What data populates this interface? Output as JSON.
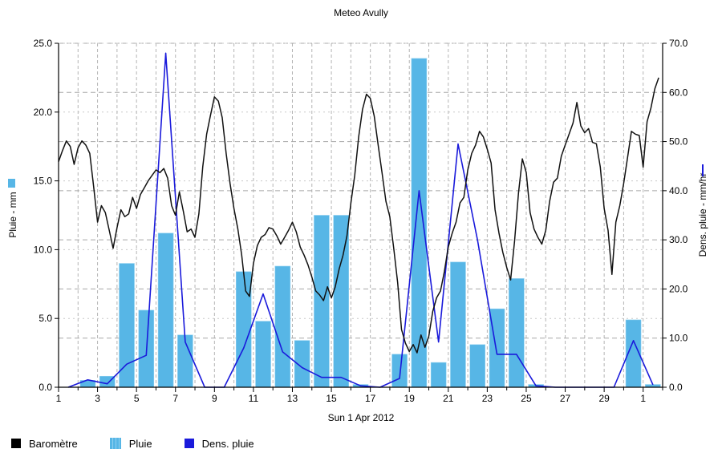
{
  "chart_data": {
    "title": "Meteo  Avully",
    "xlabel": "Sun 1 Apr 2012",
    "ylabel_left": "Pluie - mm",
    "ylabel_right": "Dens. pluie - mm/hr",
    "x_tick_labels": [
      "1",
      "3",
      "5",
      "7",
      "9",
      "11",
      "13",
      "15",
      "17",
      "19",
      "21",
      "23",
      "25",
      "27",
      "29",
      "1"
    ],
    "y_left": {
      "range": [
        0,
        25
      ],
      "ticks": [
        "0.0",
        "5.0",
        "10.0",
        "15.0",
        "20.0",
        "25.0"
      ]
    },
    "y_right": {
      "range": [
        0,
        70
      ],
      "ticks": [
        "0.0",
        "10.0",
        "20.0",
        "30.0",
        "40.0",
        "50.0",
        "60.0",
        "70.0"
      ]
    },
    "grid": true,
    "legend_position": "bottom-left",
    "series": [
      {
        "name": "Pluie",
        "type": "bar",
        "axis": "left",
        "color": "#57b6e6",
        "points": [
          [
            2.5,
            0.5
          ],
          [
            3.5,
            0.8
          ],
          [
            4.5,
            9.0
          ],
          [
            5.5,
            5.6
          ],
          [
            6.5,
            11.2
          ],
          [
            7.5,
            3.8
          ],
          [
            10.5,
            8.4
          ],
          [
            11.5,
            4.8
          ],
          [
            12.5,
            8.8
          ],
          [
            13.5,
            3.4
          ],
          [
            14.5,
            12.5
          ],
          [
            15.5,
            12.5
          ],
          [
            16.5,
            0.2
          ],
          [
            18.5,
            2.4
          ],
          [
            19.5,
            23.9
          ],
          [
            20.5,
            1.8
          ],
          [
            21.5,
            9.1
          ],
          [
            22.5,
            3.1
          ],
          [
            23.5,
            5.7
          ],
          [
            24.5,
            7.9
          ],
          [
            25.5,
            0.2
          ],
          [
            30.5,
            4.9
          ],
          [
            31.5,
            0.2
          ]
        ]
      },
      {
        "name": "Dens. pluie",
        "type": "line",
        "axis": "right",
        "color": "#1a1adb",
        "points": [
          [
            1.5,
            0
          ],
          [
            2.5,
            1.5
          ],
          [
            3.5,
            0.7
          ],
          [
            4.5,
            4.7
          ],
          [
            5.5,
            6.5
          ],
          [
            6.5,
            68
          ],
          [
            7.5,
            9.2
          ],
          [
            8.5,
            0
          ],
          [
            9.5,
            0
          ],
          [
            10.5,
            8
          ],
          [
            11.5,
            19
          ],
          [
            12.5,
            7.2
          ],
          [
            13.5,
            4
          ],
          [
            14.5,
            2
          ],
          [
            15.5,
            2
          ],
          [
            16.5,
            0.3
          ],
          [
            17.5,
            0
          ],
          [
            18.5,
            1.8
          ],
          [
            19.5,
            40
          ],
          [
            20.5,
            9.2
          ],
          [
            21.5,
            49.5
          ],
          [
            22.5,
            30
          ],
          [
            23.5,
            6.7
          ],
          [
            24.5,
            6.7
          ],
          [
            25.5,
            0.3
          ],
          [
            26.5,
            0
          ],
          [
            27.5,
            0
          ],
          [
            28.5,
            0
          ],
          [
            29.5,
            0
          ],
          [
            30.5,
            9.5
          ],
          [
            31.5,
            0.5
          ]
        ]
      },
      {
        "name": "Baromètre",
        "type": "line",
        "axis": "left",
        "color": "#111111",
        "points": [
          [
            1.0,
            16.4
          ],
          [
            1.2,
            17.2
          ],
          [
            1.4,
            17.9
          ],
          [
            1.6,
            17.5
          ],
          [
            1.8,
            16.2
          ],
          [
            2.0,
            17.4
          ],
          [
            2.2,
            17.9
          ],
          [
            2.4,
            17.6
          ],
          [
            2.6,
            17.0
          ],
          [
            2.8,
            14.6
          ],
          [
            3.0,
            12.0
          ],
          [
            3.2,
            13.2
          ],
          [
            3.4,
            12.7
          ],
          [
            3.6,
            11.4
          ],
          [
            3.8,
            10.1
          ],
          [
            4.0,
            11.6
          ],
          [
            4.2,
            12.9
          ],
          [
            4.4,
            12.4
          ],
          [
            4.6,
            12.6
          ],
          [
            4.8,
            13.8
          ],
          [
            5.0,
            13.0
          ],
          [
            5.2,
            14.0
          ],
          [
            5.4,
            14.5
          ],
          [
            5.6,
            15.0
          ],
          [
            5.8,
            15.4
          ],
          [
            6.0,
            15.8
          ],
          [
            6.2,
            15.6
          ],
          [
            6.4,
            15.9
          ],
          [
            6.6,
            15.2
          ],
          [
            6.8,
            13.2
          ],
          [
            7.0,
            12.5
          ],
          [
            7.2,
            14.2
          ],
          [
            7.4,
            12.8
          ],
          [
            7.6,
            11.3
          ],
          [
            7.8,
            11.5
          ],
          [
            8.0,
            10.9
          ],
          [
            8.2,
            12.6
          ],
          [
            8.4,
            16.0
          ],
          [
            8.6,
            18.4
          ],
          [
            8.8,
            19.8
          ],
          [
            9.0,
            21.1
          ],
          [
            9.2,
            20.8
          ],
          [
            9.4,
            19.6
          ],
          [
            9.6,
            17.0
          ],
          [
            9.8,
            14.8
          ],
          [
            10.0,
            13.0
          ],
          [
            10.2,
            11.5
          ],
          [
            10.4,
            9.6
          ],
          [
            10.6,
            7.0
          ],
          [
            10.8,
            6.6
          ],
          [
            11.0,
            9.0
          ],
          [
            11.2,
            10.3
          ],
          [
            11.4,
            10.9
          ],
          [
            11.6,
            11.1
          ],
          [
            11.8,
            11.6
          ],
          [
            12.0,
            11.5
          ],
          [
            12.2,
            11.0
          ],
          [
            12.4,
            10.4
          ],
          [
            12.6,
            10.9
          ],
          [
            12.8,
            11.4
          ],
          [
            13.0,
            12.0
          ],
          [
            13.2,
            11.3
          ],
          [
            13.4,
            10.2
          ],
          [
            13.6,
            9.6
          ],
          [
            13.8,
            8.9
          ],
          [
            14.0,
            8.0
          ],
          [
            14.2,
            7.0
          ],
          [
            14.4,
            6.7
          ],
          [
            14.6,
            6.3
          ],
          [
            14.8,
            7.3
          ],
          [
            15.0,
            6.5
          ],
          [
            15.2,
            7.3
          ],
          [
            15.4,
            8.6
          ],
          [
            15.6,
            9.6
          ],
          [
            15.8,
            11.0
          ],
          [
            16.0,
            13.4
          ],
          [
            16.2,
            15.4
          ],
          [
            16.4,
            18.2
          ],
          [
            16.6,
            20.2
          ],
          [
            16.8,
            21.3
          ],
          [
            17.0,
            21.0
          ],
          [
            17.2,
            19.7
          ],
          [
            17.4,
            17.6
          ],
          [
            17.6,
            15.6
          ],
          [
            17.8,
            13.5
          ],
          [
            18.0,
            12.4
          ],
          [
            18.2,
            10.1
          ],
          [
            18.4,
            7.6
          ],
          [
            18.6,
            4.2
          ],
          [
            18.8,
            3.2
          ],
          [
            19.0,
            2.6
          ],
          [
            19.2,
            3.1
          ],
          [
            19.4,
            2.5
          ],
          [
            19.6,
            3.8
          ],
          [
            19.8,
            2.9
          ],
          [
            20.0,
            3.7
          ],
          [
            20.2,
            5.5
          ],
          [
            20.4,
            6.5
          ],
          [
            20.6,
            7.0
          ],
          [
            20.8,
            8.4
          ],
          [
            21.0,
            10.2
          ],
          [
            21.2,
            11.2
          ],
          [
            21.4,
            12.0
          ],
          [
            21.6,
            13.4
          ],
          [
            21.8,
            13.8
          ],
          [
            22.0,
            15.8
          ],
          [
            22.2,
            17.0
          ],
          [
            22.4,
            17.6
          ],
          [
            22.6,
            18.6
          ],
          [
            22.8,
            18.2
          ],
          [
            23.0,
            17.3
          ],
          [
            23.2,
            16.3
          ],
          [
            23.4,
            12.9
          ],
          [
            23.6,
            11.2
          ],
          [
            23.8,
            9.8
          ],
          [
            24.0,
            8.7
          ],
          [
            24.2,
            7.8
          ],
          [
            24.4,
            10.6
          ],
          [
            24.6,
            14.1
          ],
          [
            24.8,
            16.6
          ],
          [
            25.0,
            15.6
          ],
          [
            25.2,
            12.7
          ],
          [
            25.4,
            11.5
          ],
          [
            25.6,
            10.9
          ],
          [
            25.8,
            10.4
          ],
          [
            26.0,
            11.4
          ],
          [
            26.2,
            13.5
          ],
          [
            26.4,
            14.9
          ],
          [
            26.6,
            15.2
          ],
          [
            26.8,
            16.8
          ],
          [
            27.0,
            17.6
          ],
          [
            27.2,
            18.4
          ],
          [
            27.4,
            19.2
          ],
          [
            27.6,
            20.7
          ],
          [
            27.8,
            19.0
          ],
          [
            28.0,
            18.5
          ],
          [
            28.2,
            18.8
          ],
          [
            28.4,
            17.8
          ],
          [
            28.6,
            17.7
          ],
          [
            28.8,
            16.0
          ],
          [
            29.0,
            13.0
          ],
          [
            29.2,
            11.4
          ],
          [
            29.4,
            8.2
          ],
          [
            29.6,
            12.0
          ],
          [
            29.8,
            13.2
          ],
          [
            30.0,
            14.8
          ],
          [
            30.2,
            16.7
          ],
          [
            30.4,
            18.6
          ],
          [
            30.6,
            18.4
          ],
          [
            30.8,
            18.3
          ],
          [
            31.0,
            16.0
          ],
          [
            31.2,
            19.3
          ],
          [
            31.4,
            20.3
          ],
          [
            31.6,
            21.7
          ],
          [
            31.8,
            22.5
          ]
        ]
      }
    ]
  }
}
